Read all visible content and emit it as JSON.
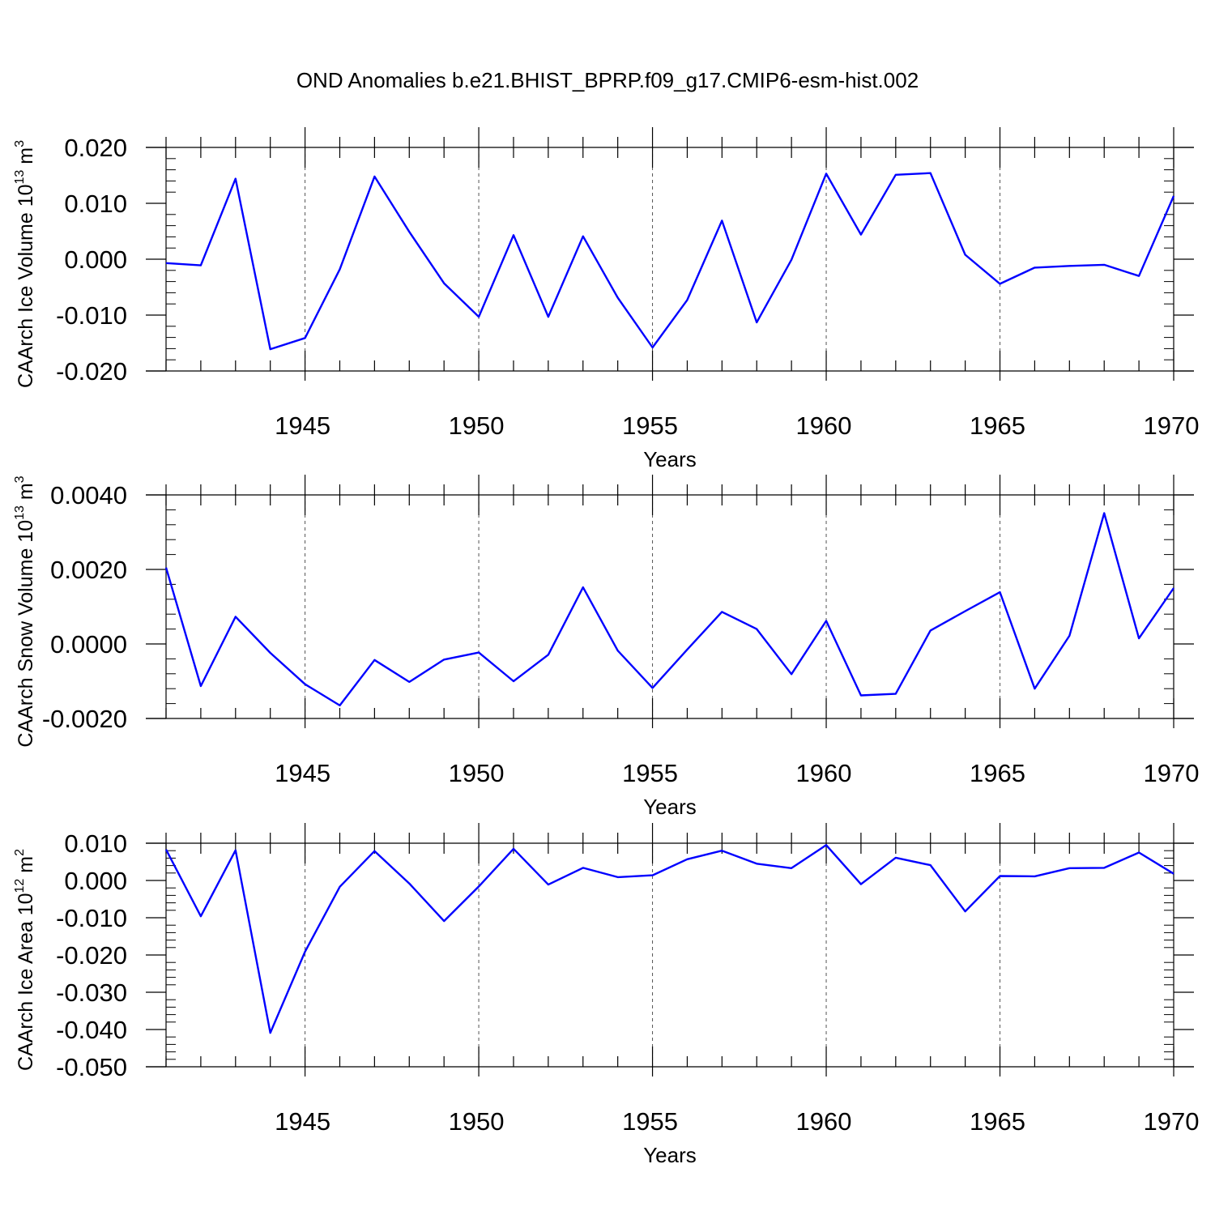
{
  "figure_title": "OND Anomalies b.e21.BHIST_BPRP.f09_g17.CMIP6-esm-hist.002",
  "line_color": "#0000ff",
  "chart_data": [
    {
      "type": "line",
      "ylabel": "CAArch Ice Volume 10",
      "ylabel_unit": " m",
      "ylabel_exp": "13",
      "ylabel_unit_exp": "3",
      "xlabel": "Years",
      "xlim": [
        1941,
        1970
      ],
      "ylim": [
        -0.02,
        0.02
      ],
      "yticks": [
        -0.02,
        -0.01,
        0.0,
        0.01,
        0.02
      ],
      "ytick_labels": [
        "-0.020",
        "-0.010",
        "0.000",
        "0.010",
        "0.020"
      ],
      "yminor_step": 0.002,
      "xticks": [
        1945,
        1950,
        1955,
        1960,
        1965,
        1970
      ],
      "xtick_labels": [
        "1945",
        "1950",
        "1955",
        "1960",
        "1965",
        "1970"
      ],
      "x": [
        1941,
        1942,
        1943,
        1944,
        1945,
        1946,
        1947,
        1948,
        1949,
        1950,
        1951,
        1952,
        1953,
        1954,
        1955,
        1956,
        1957,
        1958,
        1959,
        1960,
        1961,
        1962,
        1963,
        1964,
        1965,
        1966,
        1967,
        1968,
        1969,
        1970
      ],
      "values": [
        -0.0007,
        -0.0011,
        0.0144,
        -0.0161,
        -0.0141,
        -0.0018,
        0.0148,
        0.0049,
        -0.0043,
        -0.0103,
        0.0043,
        -0.0103,
        0.0041,
        -0.0069,
        -0.0158,
        -0.0073,
        0.0069,
        -0.0113,
        -0.0001,
        0.0153,
        0.0044,
        0.0151,
        0.0154,
        0.0008,
        -0.0044,
        -0.0015,
        -0.0012,
        -0.001,
        -0.003,
        0.0113
      ]
    },
    {
      "type": "line",
      "ylabel": "CAArch Snow Volume 10",
      "ylabel_unit": " m",
      "ylabel_exp": "13",
      "ylabel_unit_exp": "3",
      "xlabel": "Years",
      "xlim": [
        1941,
        1970
      ],
      "ylim": [
        -0.002,
        0.004
      ],
      "yticks": [
        -0.002,
        0.0,
        0.002,
        0.004
      ],
      "ytick_labels": [
        "-0.0020",
        "0.0000",
        "0.0020",
        "0.0040"
      ],
      "yminor_step": 0.0004,
      "xticks": [
        1945,
        1950,
        1955,
        1960,
        1965,
        1970
      ],
      "xtick_labels": [
        "1945",
        "1950",
        "1955",
        "1960",
        "1965",
        "1970"
      ],
      "x": [
        1941,
        1942,
        1943,
        1944,
        1945,
        1946,
        1947,
        1948,
        1949,
        1950,
        1951,
        1952,
        1953,
        1954,
        1955,
        1956,
        1957,
        1958,
        1959,
        1960,
        1961,
        1962,
        1963,
        1964,
        1965,
        1966,
        1967,
        1968,
        1969,
        1970
      ],
      "values": [
        0.00205,
        -0.00113,
        0.00073,
        -0.00024,
        -0.00108,
        -0.00165,
        -0.00043,
        -0.00102,
        -0.00042,
        -0.00023,
        -0.001,
        -0.00029,
        0.00152,
        -0.00018,
        -0.00118,
        -0.00015,
        0.00086,
        0.0004,
        -0.00081,
        0.00062,
        -0.00138,
        -0.00134,
        0.00036,
        0.00088,
        0.00139,
        -0.0012,
        0.00022,
        0.00351,
        0.00015,
        0.0015
      ]
    },
    {
      "type": "line",
      "ylabel": "CAArch Ice Area 10",
      "ylabel_unit": " m",
      "ylabel_exp": "12",
      "ylabel_unit_exp": "2",
      "xlabel": "Years",
      "xlim": [
        1941,
        1970
      ],
      "ylim": [
        -0.05,
        0.01
      ],
      "yticks": [
        -0.05,
        -0.04,
        -0.03,
        -0.02,
        -0.01,
        0.0,
        0.01
      ],
      "ytick_labels": [
        "-0.050",
        "-0.040",
        "-0.030",
        "-0.020",
        "-0.010",
        "0.000",
        "0.010"
      ],
      "yminor_step": 0.002,
      "xticks": [
        1945,
        1950,
        1955,
        1960,
        1965,
        1970
      ],
      "xtick_labels": [
        "1945",
        "1950",
        "1955",
        "1960",
        "1965",
        "1970"
      ],
      "x": [
        1941,
        1942,
        1943,
        1944,
        1945,
        1946,
        1947,
        1948,
        1949,
        1950,
        1951,
        1952,
        1953,
        1954,
        1955,
        1956,
        1957,
        1958,
        1959,
        1960,
        1961,
        1962,
        1963,
        1964,
        1965,
        1966,
        1967,
        1968,
        1969,
        1970
      ],
      "values": [
        0.0083,
        -0.0096,
        0.0081,
        -0.0409,
        -0.0191,
        -0.0017,
        0.0079,
        -0.0008,
        -0.0109,
        -0.0016,
        0.0085,
        -0.0011,
        0.0034,
        0.0009,
        0.0014,
        0.0057,
        0.008,
        0.0045,
        0.0033,
        0.0095,
        -0.001,
        0.0061,
        0.0041,
        -0.0083,
        0.0012,
        0.0011,
        0.0033,
        0.0034,
        0.0075,
        0.0018
      ]
    }
  ]
}
